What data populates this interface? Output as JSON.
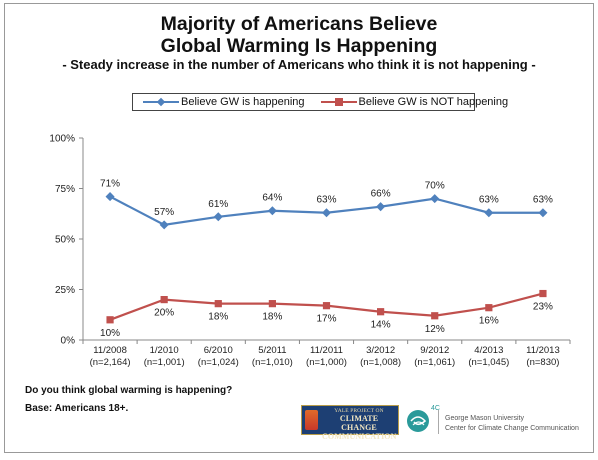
{
  "title_line1": "Majority of Americans Believe",
  "title_line2": "Global Warming Is Happening",
  "subtitle": "- Steady increase in the number of Americans who think it is not happening -",
  "question": "Do you think global warming is happening?",
  "base": "Base: Americans 18+.",
  "logos": {
    "badge_lines": [
      "YALE PROJECT ON",
      "CLIMATE CHANGE",
      "COMMUNICATION"
    ],
    "center_mark": "4C",
    "university": "George Mason University",
    "center": "Center for Climate Change Communication"
  },
  "chart_data": {
    "type": "line",
    "categories": [
      "11/2008",
      "1/2010",
      "6/2010",
      "5/2011",
      "11/2011",
      "3/2012",
      "9/2012",
      "4/2013",
      "11/2013"
    ],
    "category_notes": [
      "(n=2,164)",
      "(n=1,001)",
      "(n=1,024)",
      "(n=1,010)",
      "(n=1,000)",
      "(n=1,008)",
      "(n=1,061)",
      "(n=1,045)",
      "(n=830)"
    ],
    "yticks": [
      "0%",
      "25%",
      "50%",
      "75%",
      "100%"
    ],
    "ylim": [
      0,
      100
    ],
    "grid": false,
    "legend": "top",
    "series": [
      {
        "name": "Believe GW is happening",
        "values": [
          71,
          57,
          61,
          64,
          63,
          66,
          70,
          63,
          63
        ],
        "labels": [
          "71%",
          "57%",
          "61%",
          "64%",
          "63%",
          "66%",
          "70%",
          "63%",
          "63%"
        ],
        "color": "#4f81bd",
        "marker": "diamond"
      },
      {
        "name": "Believe GW is NOT happening",
        "values": [
          10,
          20,
          18,
          18,
          17,
          14,
          12,
          16,
          23
        ],
        "labels": [
          "10%",
          "20%",
          "18%",
          "18%",
          "17%",
          "14%",
          "12%",
          "16%",
          "23%"
        ],
        "color": "#c0504d",
        "marker": "square"
      }
    ]
  }
}
